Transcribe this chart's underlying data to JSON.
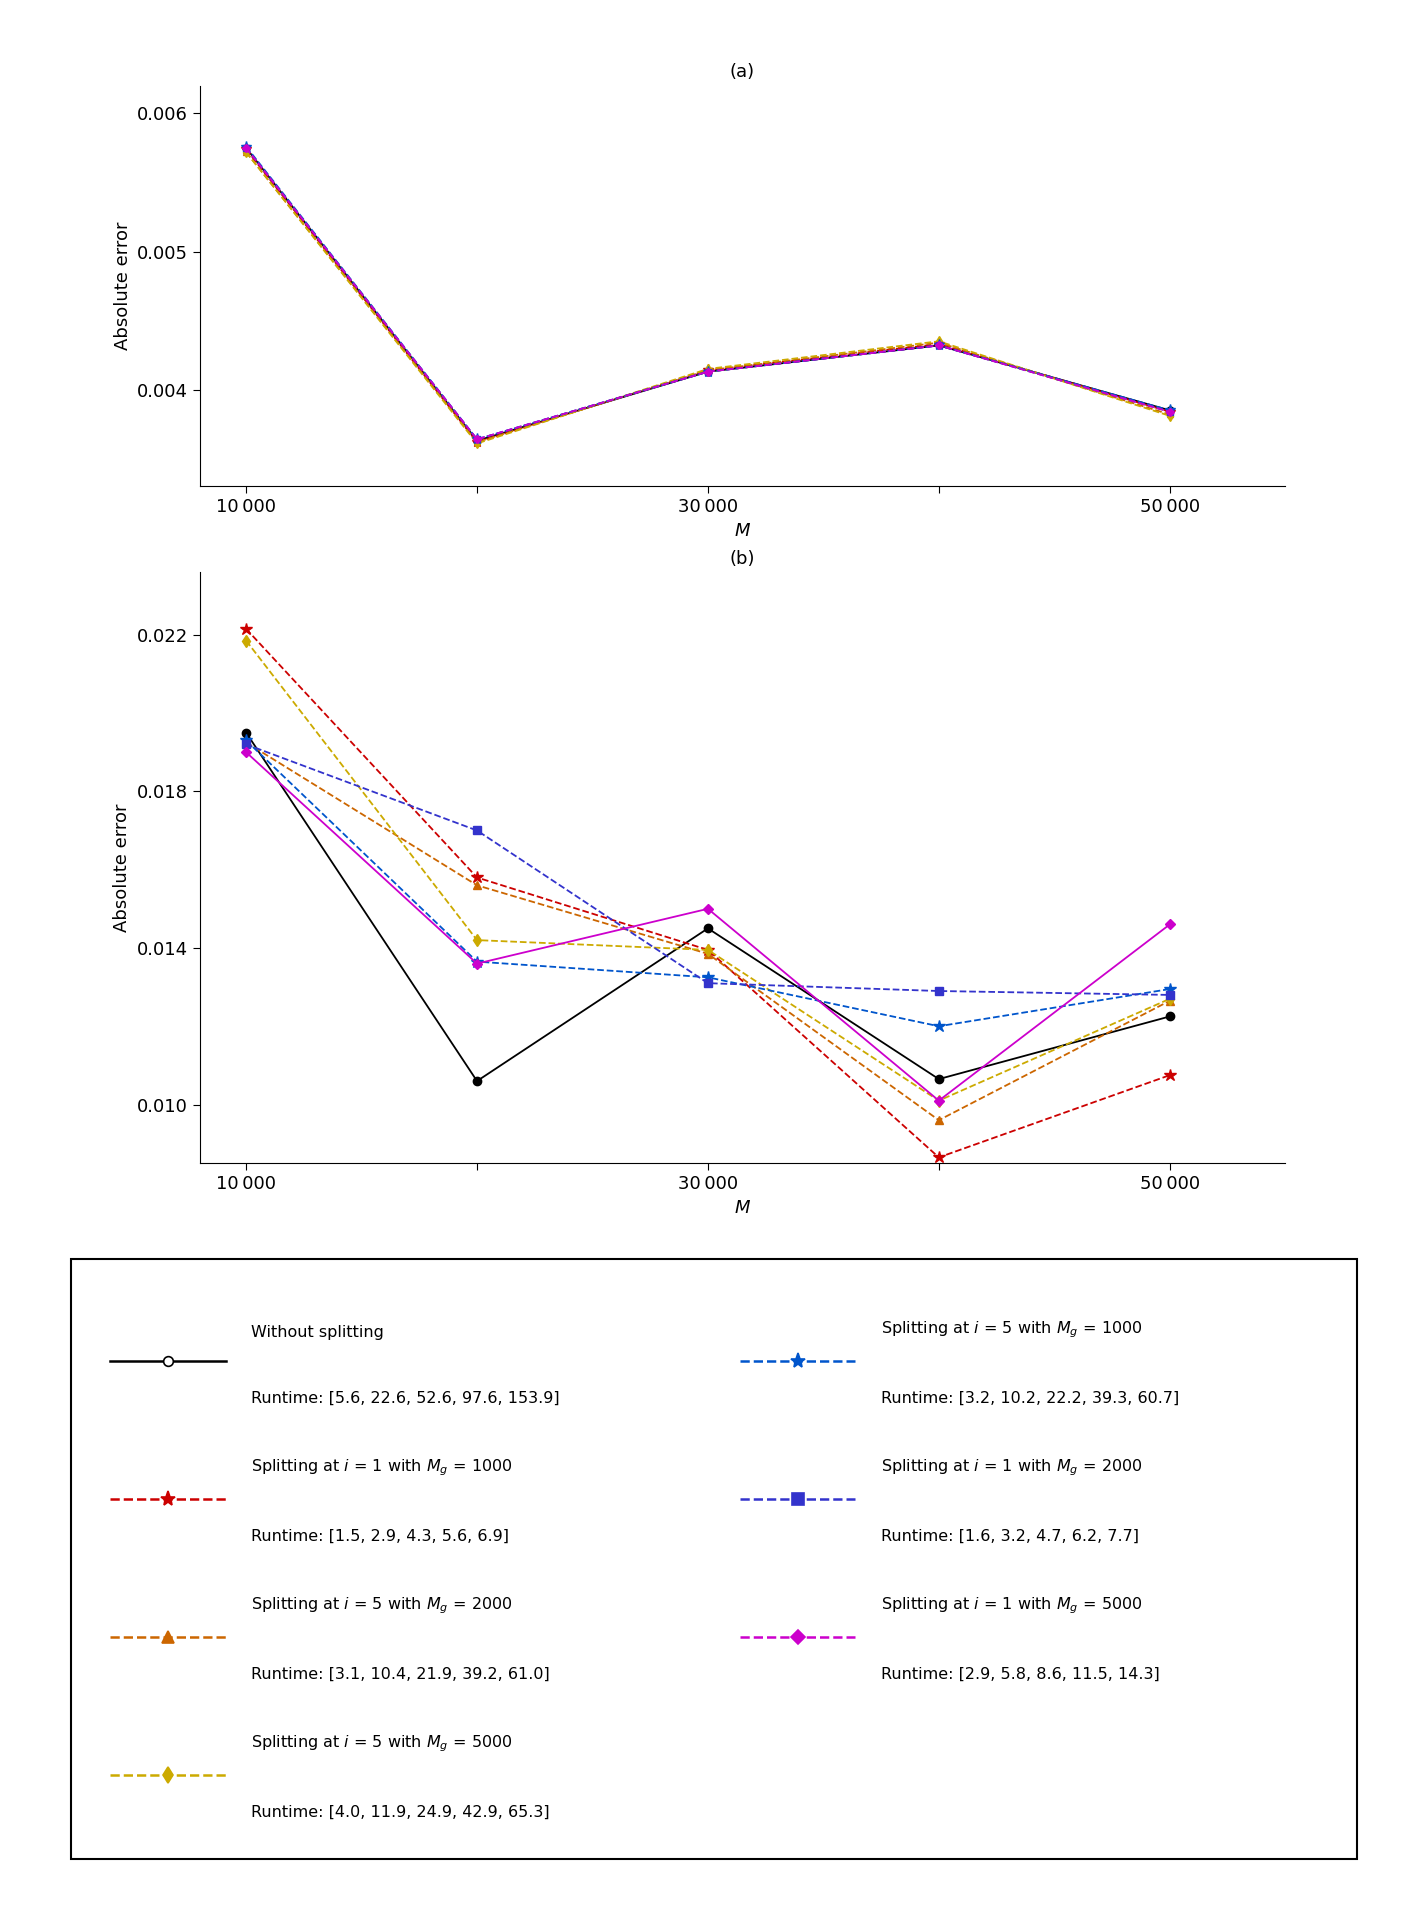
{
  "M_values": [
    10000,
    20000,
    30000,
    40000,
    50000
  ],
  "panel_a": {
    "title": "(a)",
    "ylabel": "Absolute error",
    "xlabel": "M",
    "ylim": [
      0.0033,
      0.0062
    ],
    "yticks": [
      0.004,
      0.005,
      0.006
    ],
    "series": [
      {
        "color": "#000000",
        "ls": "-",
        "marker": "o",
        "ms": 5,
        "lw": 1.3,
        "data": [
          0.00575,
          0.00363,
          0.00413,
          0.00432,
          0.00385
        ]
      },
      {
        "color": "#cc0000",
        "ls": "--",
        "marker": "*",
        "ms": 8,
        "lw": 1.3,
        "data": [
          0.00574,
          0.00362,
          0.00414,
          0.00433,
          0.00384
        ]
      },
      {
        "color": "#cc6600",
        "ls": "--",
        "marker": "^",
        "ms": 5,
        "lw": 1.3,
        "data": [
          0.00572,
          0.00362,
          0.00414,
          0.00434,
          0.00382
        ]
      },
      {
        "color": "#ccaa00",
        "ls": "--",
        "marker": "d",
        "ms": 5,
        "lw": 1.3,
        "data": [
          0.00572,
          0.00361,
          0.00415,
          0.00435,
          0.00381
        ]
      },
      {
        "color": "#0055cc",
        "ls": "--",
        "marker": "*",
        "ms": 8,
        "lw": 1.3,
        "data": [
          0.00576,
          0.00364,
          0.00413,
          0.00432,
          0.00385
        ]
      },
      {
        "color": "#3333cc",
        "ls": "--",
        "marker": "s",
        "ms": 5,
        "lw": 1.3,
        "data": [
          0.00575,
          0.00364,
          0.00413,
          0.00432,
          0.00384
        ]
      },
      {
        "color": "#cc00cc",
        "ls": "--",
        "marker": "D",
        "ms": 4,
        "lw": 1.3,
        "data": [
          0.00575,
          0.00364,
          0.00413,
          0.00432,
          0.00384
        ]
      }
    ]
  },
  "panel_b": {
    "title": "(b)",
    "ylabel": "Absolute error",
    "xlabel": "M",
    "ylim": [
      0.0085,
      0.0236
    ],
    "yticks": [
      0.01,
      0.014,
      0.018,
      0.022
    ],
    "series": [
      {
        "color": "#000000",
        "ls": "-",
        "marker": "o",
        "ms": 6,
        "lw": 1.3,
        "data": [
          0.0195,
          0.0106,
          0.0145,
          0.01065,
          0.01225
        ]
      },
      {
        "color": "#cc0000",
        "ls": "--",
        "marker": "*",
        "ms": 9,
        "lw": 1.3,
        "data": [
          0.02215,
          0.0158,
          0.01395,
          0.00865,
          0.01075
        ]
      },
      {
        "color": "#cc6600",
        "ls": "--",
        "marker": "^",
        "ms": 6,
        "lw": 1.3,
        "data": [
          0.01925,
          0.0156,
          0.01385,
          0.0096,
          0.01265
        ]
      },
      {
        "color": "#ccaa00",
        "ls": "--",
        "marker": "d",
        "ms": 6,
        "lw": 1.3,
        "data": [
          0.02185,
          0.0142,
          0.01395,
          0.0101,
          0.0127
        ]
      },
      {
        "color": "#0055cc",
        "ls": "--",
        "marker": "*",
        "ms": 9,
        "lw": 1.3,
        "data": [
          0.0193,
          0.01365,
          0.01325,
          0.012,
          0.01295
        ]
      },
      {
        "color": "#3333cc",
        "ls": "--",
        "marker": "s",
        "ms": 6,
        "lw": 1.3,
        "data": [
          0.0192,
          0.017,
          0.0131,
          0.0129,
          0.0128
        ]
      },
      {
        "color": "#cc00cc",
        "ls": "-",
        "marker": "D",
        "ms": 5,
        "lw": 1.3,
        "data": [
          0.019,
          0.0136,
          0.015,
          0.0101,
          0.0146
        ]
      }
    ]
  },
  "legend_left": [
    {
      "l1": "Without splitting",
      "l2": "Runtime: [5.6, 22.6, 52.6, 97.6, 153.9]",
      "color": "#000000",
      "ls": "-",
      "marker": "o",
      "ms": 7
    },
    {
      "l1": "Splitting at $i$ = 1 with $M_g$ = 1000",
      "l2": "Runtime: [1.5, 2.9, 4.3, 5.6, 6.9]",
      "color": "#cc0000",
      "ls": "--",
      "marker": "*",
      "ms": 11
    },
    {
      "l1": "Splitting at $i$ = 5 with $M_g$ = 2000",
      "l2": "Runtime: [3.1, 10.4, 21.9, 39.2, 61.0]",
      "color": "#cc6600",
      "ls": "--",
      "marker": "^",
      "ms": 8
    },
    {
      "l1": "Splitting at $i$ = 5 with $M_g$ = 5000",
      "l2": "Runtime: [4.0, 11.9, 24.9, 42.9, 65.3]",
      "color": "#ccaa00",
      "ls": "--",
      "marker": "d",
      "ms": 8
    }
  ],
  "legend_right": [
    {
      "l1": "Splitting at $i$ = 5 with $M_g$ = 1000",
      "l2": "Runtime: [3.2, 10.2, 22.2, 39.3, 60.7]",
      "color": "#0055cc",
      "ls": "--",
      "marker": "*",
      "ms": 11
    },
    {
      "l1": "Splitting at $i$ = 1 with $M_g$ = 2000",
      "l2": "Runtime: [1.6, 3.2, 4.7, 6.2, 7.7]",
      "color": "#3333cc",
      "ls": "--",
      "marker": "s",
      "ms": 8
    },
    {
      "l1": "Splitting at $i$ = 1 with $M_g$ = 5000",
      "l2": "Runtime: [2.9, 5.8, 8.6, 11.5, 14.3]",
      "color": "#cc00cc",
      "ls": "--",
      "marker": "D",
      "ms": 7
    }
  ],
  "xtick_labels": [
    "10 000",
    "",
    "30 000",
    "",
    "50 000"
  ],
  "xticks": [
    10000,
    20000,
    30000,
    40000,
    50000
  ]
}
